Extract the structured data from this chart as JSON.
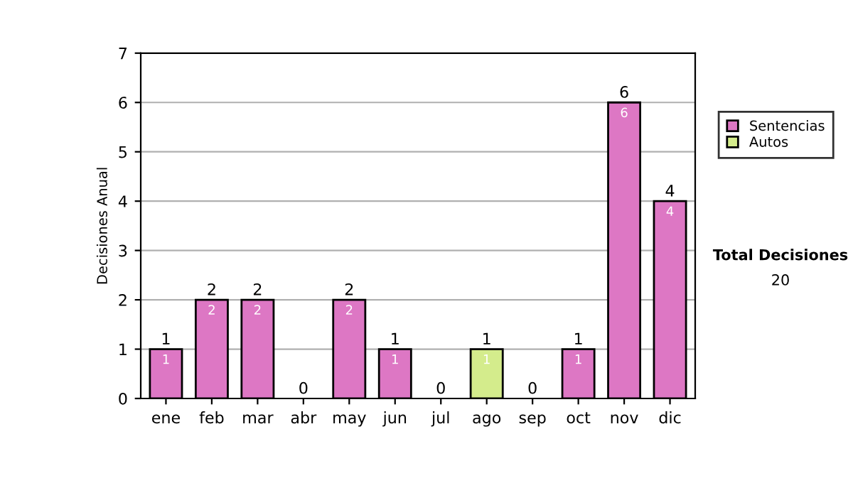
{
  "chart_data": {
    "type": "bar",
    "stacked": true,
    "ylabel": "Decisiones Anual",
    "categories": [
      "ene",
      "feb",
      "mar",
      "abr",
      "may",
      "jun",
      "jul",
      "ago",
      "sep",
      "oct",
      "nov",
      "dic"
    ],
    "series": [
      {
        "name": "Sentencias",
        "color": "#dd77c4",
        "values": [
          1,
          2,
          2,
          0,
          2,
          1,
          0,
          0,
          0,
          1,
          6,
          4
        ],
        "value_labels": [
          "1",
          "2",
          "2",
          null,
          "2",
          "1",
          null,
          null,
          null,
          "1",
          "6",
          "4"
        ]
      },
      {
        "name": "Autos",
        "color": "#d4ec8c",
        "values": [
          0,
          0,
          0,
          0,
          0,
          0,
          0,
          1,
          0,
          0,
          0,
          0
        ],
        "value_labels": [
          null,
          null,
          null,
          null,
          null,
          null,
          null,
          "1",
          null,
          null,
          null,
          null
        ]
      }
    ],
    "totals": [
      "1",
      "2",
      "2",
      "0",
      "2",
      "1",
      "0",
      "1",
      "0",
      "1",
      "6",
      "4"
    ],
    "ylim": [
      0,
      7
    ],
    "yticks": [
      0,
      1,
      2,
      3,
      4,
      5,
      6,
      7
    ],
    "grid": "y",
    "legend": "right",
    "annotations": [
      "Total Decisiones",
      "20"
    ]
  }
}
